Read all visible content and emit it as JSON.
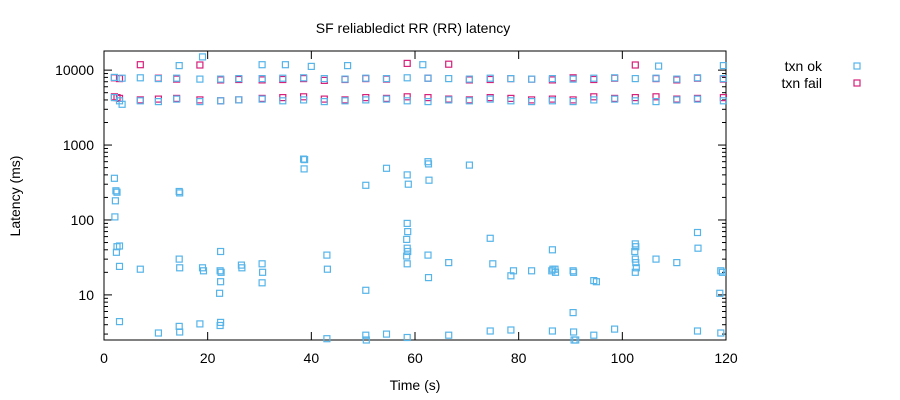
{
  "chart_data": {
    "type": "scatter",
    "title": "SF reliabledict RR (RR)  latency",
    "xlabel": "Time (s)",
    "ylabel": "Latency (ms)",
    "xlim": [
      0,
      120
    ],
    "ylim": [
      2.5,
      18000
    ],
    "yscale": "log",
    "grid": false,
    "legend_position": "top-right outside",
    "x_ticks": [
      0,
      20,
      40,
      60,
      80,
      100,
      120
    ],
    "x_tick_labels": [
      "0",
      "20",
      "40",
      "60",
      "80",
      "100",
      "120"
    ],
    "y_ticks": [
      10,
      100,
      1000,
      10000
    ],
    "y_tick_labels": [
      "10",
      "100",
      "1000",
      "10000"
    ],
    "series": [
      {
        "name": "txn ok",
        "color": "#56b4e9",
        "points": [
          [
            2,
            8000
          ],
          [
            3.5,
            7800
          ],
          [
            7,
            7900
          ],
          [
            10.5,
            7700
          ],
          [
            14,
            7800
          ],
          [
            18.5,
            7600
          ],
          [
            22.5,
            7600
          ],
          [
            26,
            7700
          ],
          [
            30.5,
            7700
          ],
          [
            34.5,
            7800
          ],
          [
            38.5,
            7900
          ],
          [
            42.5,
            7700
          ],
          [
            46.5,
            7600
          ],
          [
            50.5,
            7800
          ],
          [
            54.5,
            7700
          ],
          [
            58.5,
            7900
          ],
          [
            62.5,
            7800
          ],
          [
            66.5,
            7700
          ],
          [
            70.5,
            7600
          ],
          [
            74.5,
            7800
          ],
          [
            78.5,
            7700
          ],
          [
            82.5,
            7600
          ],
          [
            86.5,
            7700
          ],
          [
            90.5,
            7600
          ],
          [
            94.5,
            7800
          ],
          [
            98.5,
            7900
          ],
          [
            102.5,
            7700
          ],
          [
            106.5,
            7800
          ],
          [
            110.5,
            7600
          ],
          [
            114.5,
            7900
          ],
          [
            119.5,
            7700
          ],
          [
            2,
            4300
          ],
          [
            3,
            3900
          ],
          [
            3.5,
            3500
          ],
          [
            7,
            3900
          ],
          [
            10.5,
            3800
          ],
          [
            14,
            4100
          ],
          [
            18.5,
            3800
          ],
          [
            22.5,
            3900
          ],
          [
            26,
            4000
          ],
          [
            30.5,
            4100
          ],
          [
            34.5,
            3900
          ],
          [
            38.5,
            4000
          ],
          [
            42.5,
            3800
          ],
          [
            46.5,
            3900
          ],
          [
            50.5,
            4000
          ],
          [
            54.5,
            4100
          ],
          [
            58.5,
            3900
          ],
          [
            62.5,
            3800
          ],
          [
            66.5,
            4000
          ],
          [
            70.5,
            3900
          ],
          [
            74.5,
            4100
          ],
          [
            78.5,
            3900
          ],
          [
            82.5,
            3800
          ],
          [
            86.5,
            3900
          ],
          [
            90.5,
            3800
          ],
          [
            94.5,
            4000
          ],
          [
            98.5,
            4100
          ],
          [
            102.5,
            3900
          ],
          [
            106.5,
            3800
          ],
          [
            110.5,
            4000
          ],
          [
            114.5,
            4100
          ],
          [
            119.5,
            3900
          ],
          [
            19,
            15000
          ],
          [
            14.5,
            11500
          ],
          [
            30.5,
            11800
          ],
          [
            35,
            11800
          ],
          [
            40,
            11200
          ],
          [
            47,
            11500
          ],
          [
            61.5,
            11800
          ],
          [
            107,
            11300
          ],
          [
            119.5,
            11500
          ],
          [
            2,
            360
          ],
          [
            2.3,
            245
          ],
          [
            2.5,
            235
          ],
          [
            2.2,
            180
          ],
          [
            2.1,
            110
          ],
          [
            14.5,
            240
          ],
          [
            14.6,
            230
          ],
          [
            38.5,
            650
          ],
          [
            38.7,
            640
          ],
          [
            38.6,
            480
          ],
          [
            50.5,
            290
          ],
          [
            54.5,
            490
          ],
          [
            58.5,
            400
          ],
          [
            58.7,
            300
          ],
          [
            62.5,
            600
          ],
          [
            62.6,
            560
          ],
          [
            62.7,
            340
          ],
          [
            70.5,
            540
          ],
          [
            2.5,
            44
          ],
          [
            3,
            45
          ],
          [
            2.4,
            37
          ],
          [
            3,
            24
          ],
          [
            7,
            22
          ],
          [
            14.5,
            30
          ],
          [
            14.6,
            23
          ],
          [
            19,
            23
          ],
          [
            19.2,
            21
          ],
          [
            22.5,
            38
          ],
          [
            22.4,
            21
          ],
          [
            22.6,
            20
          ],
          [
            22.5,
            15
          ],
          [
            22.3,
            10.5
          ],
          [
            26.5,
            25
          ],
          [
            26.6,
            23
          ],
          [
            30.5,
            26
          ],
          [
            30.6,
            20
          ],
          [
            30.5,
            14.5
          ],
          [
            43,
            34
          ],
          [
            43.1,
            22
          ],
          [
            50.5,
            11.5
          ],
          [
            58.5,
            90
          ],
          [
            58.6,
            70
          ],
          [
            58.4,
            55
          ],
          [
            58.5,
            42
          ],
          [
            58.6,
            38
          ],
          [
            58.4,
            33
          ],
          [
            58.5,
            26
          ],
          [
            62.5,
            34
          ],
          [
            62.6,
            17
          ],
          [
            66.5,
            27
          ],
          [
            74.5,
            57
          ],
          [
            75,
            26
          ],
          [
            78.5,
            18
          ],
          [
            79,
            21
          ],
          [
            82.5,
            21
          ],
          [
            86.5,
            40
          ],
          [
            86.6,
            22
          ],
          [
            86.4,
            21
          ],
          [
            87,
            22
          ],
          [
            87.1,
            20
          ],
          [
            90.5,
            21
          ],
          [
            90.6,
            20
          ],
          [
            94.5,
            15.5
          ],
          [
            95,
            15
          ],
          [
            102.5,
            48
          ],
          [
            102.6,
            44
          ],
          [
            102.4,
            38
          ],
          [
            102.5,
            30
          ],
          [
            102.6,
            27
          ],
          [
            102.7,
            23
          ],
          [
            102.5,
            20
          ],
          [
            106.5,
            30
          ],
          [
            110.5,
            27
          ],
          [
            114.5,
            68
          ],
          [
            114.6,
            42
          ],
          [
            119,
            21
          ],
          [
            119.3,
            20
          ],
          [
            118.8,
            10.5
          ],
          [
            3,
            4.4
          ],
          [
            10.5,
            3.1
          ],
          [
            14.5,
            3.8
          ],
          [
            14.6,
            3.2
          ],
          [
            18.5,
            4.1
          ],
          [
            22.5,
            4.3
          ],
          [
            22.4,
            3.9
          ],
          [
            43,
            2.6
          ],
          [
            50.5,
            2.9
          ],
          [
            50.6,
            2.5
          ],
          [
            54.5,
            3.0
          ],
          [
            58.5,
            2.7
          ],
          [
            66.5,
            2.9
          ],
          [
            74.5,
            3.3
          ],
          [
            78.5,
            3.4
          ],
          [
            86.5,
            3.3
          ],
          [
            90.5,
            5.8
          ],
          [
            90.6,
            3.2
          ],
          [
            90.7,
            2.5
          ],
          [
            91,
            2.5
          ],
          [
            94.5,
            2.9
          ],
          [
            98.5,
            3.5
          ],
          [
            114.5,
            3.3
          ],
          [
            119,
            3.1
          ]
        ]
      },
      {
        "name": "txn fail",
        "color": "#d6207a",
        "points": [
          [
            2,
            7900
          ],
          [
            3,
            7700
          ],
          [
            7,
            11800
          ],
          [
            10.5,
            7800
          ],
          [
            14,
            7600
          ],
          [
            18.5,
            11700
          ],
          [
            22.5,
            7400
          ],
          [
            26,
            7500
          ],
          [
            30.5,
            7400
          ],
          [
            34.5,
            7500
          ],
          [
            38.5,
            7700
          ],
          [
            42.5,
            7300
          ],
          [
            46.5,
            7500
          ],
          [
            50.5,
            7700
          ],
          [
            54.5,
            7600
          ],
          [
            58.5,
            12300
          ],
          [
            62.5,
            7800
          ],
          [
            66.5,
            12000
          ],
          [
            70.5,
            7400
          ],
          [
            74.5,
            7500
          ],
          [
            78.5,
            7700
          ],
          [
            82.5,
            7600
          ],
          [
            86.5,
            7400
          ],
          [
            90.5,
            7900
          ],
          [
            94.5,
            7500
          ],
          [
            98.5,
            7800
          ],
          [
            102.5,
            11700
          ],
          [
            106.5,
            7700
          ],
          [
            110.5,
            7400
          ],
          [
            114.5,
            7800
          ],
          [
            119.5,
            7600
          ],
          [
            2,
            4400
          ],
          [
            2.5,
            4300
          ],
          [
            3,
            4200
          ],
          [
            7,
            4000
          ],
          [
            10.5,
            4100
          ],
          [
            14,
            4200
          ],
          [
            18.5,
            4000
          ],
          [
            22.5,
            3900
          ],
          [
            26,
            4000
          ],
          [
            30.5,
            4200
          ],
          [
            34.5,
            4300
          ],
          [
            38.5,
            4400
          ],
          [
            42.5,
            4100
          ],
          [
            46.5,
            4000
          ],
          [
            50.5,
            4300
          ],
          [
            54.5,
            4200
          ],
          [
            58.5,
            4400
          ],
          [
            62.5,
            4300
          ],
          [
            66.5,
            4100
          ],
          [
            70.5,
            4000
          ],
          [
            74.5,
            4300
          ],
          [
            78.5,
            4200
          ],
          [
            82.5,
            4000
          ],
          [
            86.5,
            4100
          ],
          [
            90.5,
            4000
          ],
          [
            94.5,
            4400
          ],
          [
            98.5,
            4200
          ],
          [
            102.5,
            4300
          ],
          [
            106.5,
            4400
          ],
          [
            110.5,
            4100
          ],
          [
            114.5,
            4200
          ],
          [
            119.5,
            4300
          ]
        ]
      }
    ]
  }
}
